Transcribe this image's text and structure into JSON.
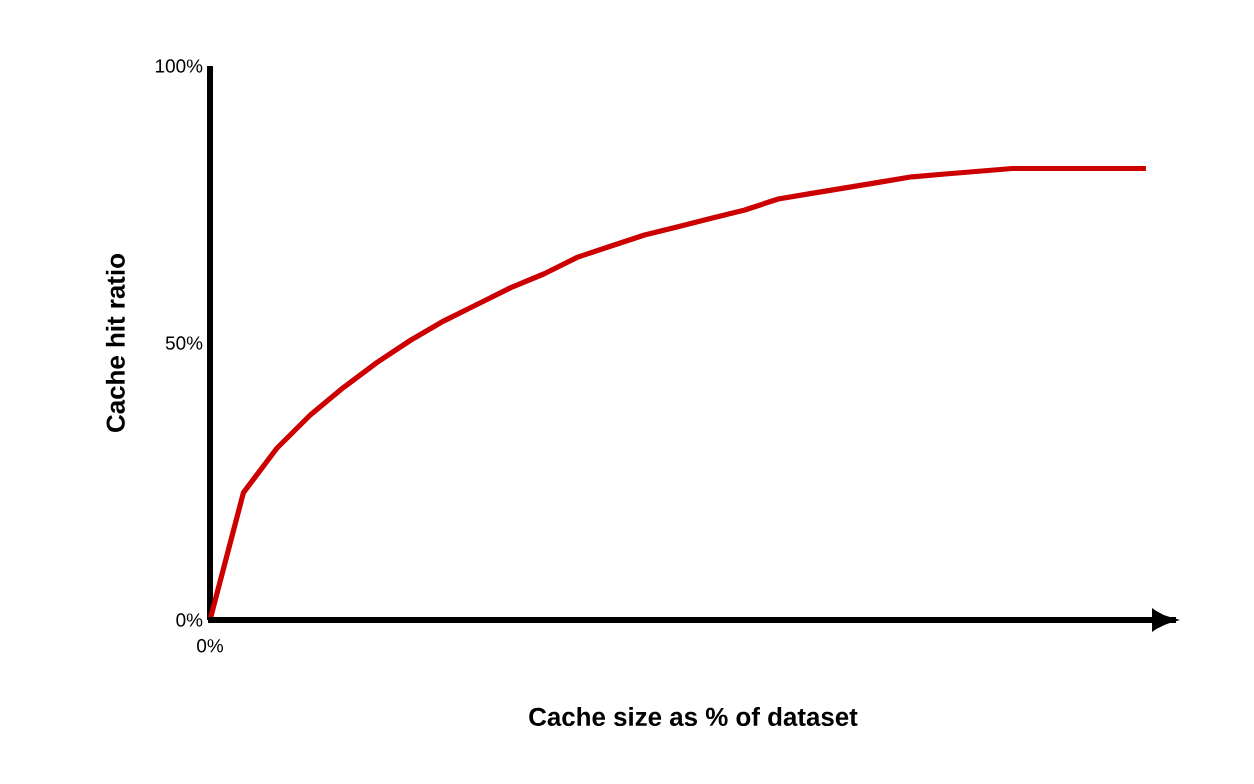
{
  "chart_data": {
    "type": "line",
    "xlabel": "Cache size as % of dataset",
    "ylabel": "Cache hit ratio",
    "categories": [
      "0%",
      null,
      null,
      null,
      null,
      null,
      null,
      null,
      null,
      null,
      null,
      null,
      null,
      null,
      null,
      null,
      null,
      null,
      null,
      null,
      null,
      null,
      null,
      null,
      null,
      null,
      null,
      null,
      null
    ],
    "series": [
      {
        "color": "#cc0000",
        "values": [
          0,
          23,
          31,
          37,
          42,
          46.5,
          50.5,
          54,
          57,
          60,
          62.5,
          65.5,
          67.5,
          69.5,
          71,
          72.5,
          74,
          76,
          77,
          78,
          79,
          80,
          80.5,
          81,
          81.5,
          81.5,
          81.5,
          81.5,
          81.5
        ]
      }
    ],
    "ylim": [
      0,
      100
    ],
    "yticks": [
      {
        "value": 0,
        "label": "0%"
      },
      {
        "value": 50,
        "label": "50%"
      },
      {
        "value": 100,
        "label": "100%"
      }
    ],
    "grid": false,
    "marker": "none",
    "line_style": "solid"
  }
}
